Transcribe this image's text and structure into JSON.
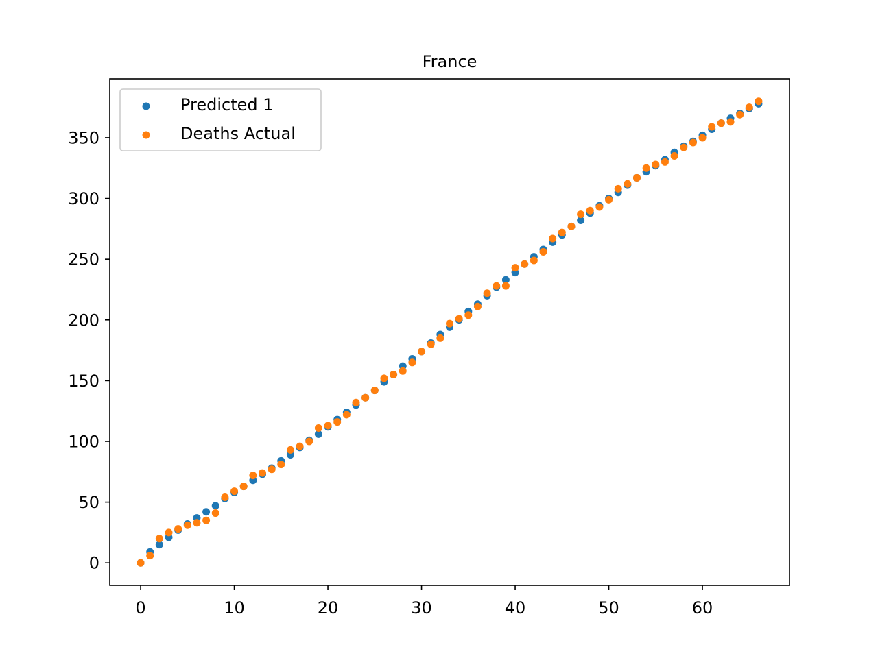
{
  "chart_data": {
    "type": "scatter",
    "title": "France",
    "xlabel": "",
    "ylabel": "",
    "xlim": [
      -3.3,
      69.3
    ],
    "ylim": [
      -18.5,
      398.5
    ],
    "xticks": [
      0,
      10,
      20,
      30,
      40,
      50,
      60
    ],
    "yticks": [
      0,
      50,
      100,
      150,
      200,
      250,
      300,
      350
    ],
    "grid": false,
    "legend_position": "upper left",
    "x": [
      0,
      1,
      2,
      3,
      4,
      5,
      6,
      7,
      8,
      9,
      10,
      11,
      12,
      13,
      14,
      15,
      16,
      17,
      18,
      19,
      20,
      21,
      22,
      23,
      24,
      25,
      26,
      27,
      28,
      29,
      30,
      31,
      32,
      33,
      34,
      35,
      36,
      37,
      38,
      39,
      40,
      41,
      42,
      43,
      44,
      45,
      46,
      47,
      48,
      49,
      50,
      51,
      52,
      53,
      54,
      55,
      56,
      57,
      58,
      59,
      60,
      61,
      62,
      63,
      64,
      65,
      66
    ],
    "series": [
      {
        "name": "Predicted 1",
        "color": "#1f77b4",
        "values": [
          0,
          9,
          15,
          21,
          27,
          32,
          37,
          42,
          47,
          53,
          58,
          63,
          68,
          73,
          78,
          84,
          89,
          95,
          101,
          106,
          112,
          118,
          124,
          130,
          136,
          142,
          149,
          155,
          162,
          168,
          174,
          181,
          188,
          194,
          200,
          207,
          213,
          220,
          227,
          233,
          239,
          246,
          252,
          258,
          264,
          270,
          277,
          282,
          288,
          294,
          300,
          305,
          311,
          317,
          322,
          327,
          332,
          338,
          343,
          347,
          352,
          357,
          362,
          366,
          370,
          374,
          378
        ]
      },
      {
        "name": "Deaths Actual",
        "color": "#ff7f0e",
        "values": [
          0,
          6,
          20,
          25,
          28,
          31,
          33,
          35,
          41,
          54,
          59,
          63,
          72,
          74,
          77,
          81,
          93,
          96,
          100,
          111,
          113,
          116,
          122,
          132,
          136,
          142,
          152,
          155,
          158,
          165,
          174,
          180,
          185,
          197,
          201,
          204,
          211,
          222,
          228,
          228,
          243,
          246,
          249,
          256,
          267,
          272,
          277,
          287,
          290,
          293,
          299,
          308,
          312,
          317,
          325,
          328,
          330,
          335,
          342,
          346,
          350,
          359,
          362,
          363,
          369,
          375,
          380
        ]
      }
    ]
  }
}
